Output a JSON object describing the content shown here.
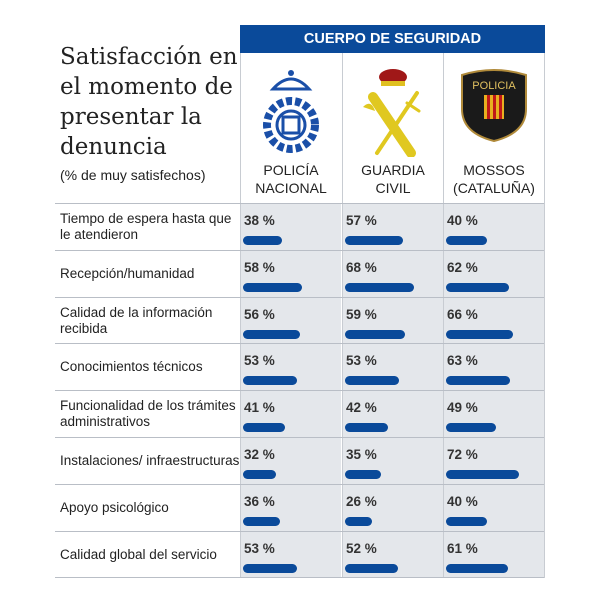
{
  "title": "Satisfacción en el momento de presentar la denuncia",
  "subtitle": "(% de muy satisfechos)",
  "header": "CUERPO DE SEGURIDAD",
  "colors": {
    "accent": "#0a4a9a",
    "cell_bg": "#e4e7eb"
  },
  "chart_data": {
    "type": "bar",
    "title": "Satisfacción en el momento de presentar la denuncia",
    "subtitle": "(% de muy satisfechos)",
    "categories": [
      "Tiempo de espera hasta que le atendieron",
      "Recepción/humanidad",
      "Calidad de la información recibida",
      "Conocimientos técnicos",
      "Funcionalidad de los trámites administrativos",
      "Instalaciones/ infraestructuras",
      "Apoyo psicológico",
      "Calidad global del servicio"
    ],
    "series": [
      {
        "name": "POLICÍA\nNACIONAL",
        "logo": "policia-nacional-badge",
        "values": [
          38,
          58,
          56,
          53,
          41,
          32,
          36,
          53
        ]
      },
      {
        "name": "GUARDIA\nCIVIL",
        "logo": "guardia-civil-emblem",
        "values": [
          57,
          68,
          59,
          53,
          42,
          35,
          26,
          52
        ]
      },
      {
        "name": "MOSSOS\n(CATALUÑA)",
        "logo": "mossos-shield",
        "logo_text": "POLICIA MOSSOS D'ESQUADRA",
        "values": [
          40,
          62,
          66,
          63,
          49,
          72,
          40,
          61
        ]
      }
    ],
    "unit": "%",
    "xlim": [
      0,
      100
    ]
  }
}
